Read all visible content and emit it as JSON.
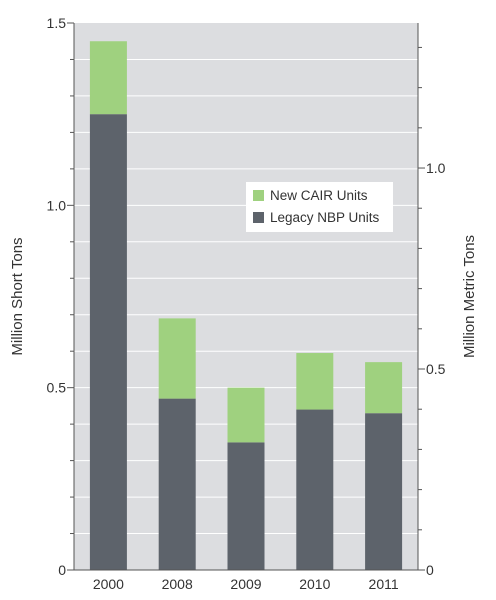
{
  "chart_data": {
    "type": "bar",
    "stacked": true,
    "categories": [
      "2000",
      "2008",
      "2009",
      "2010",
      "2011"
    ],
    "series": [
      {
        "name": "Legacy NBP Units",
        "values": [
          1.25,
          0.47,
          0.35,
          0.44,
          0.43
        ],
        "color": "#5d636b"
      },
      {
        "name": "New CAIR Units",
        "values": [
          0.2,
          0.22,
          0.15,
          0.155,
          0.14
        ],
        "color": "#9fd17f"
      }
    ],
    "ylabel": "Million Short Tons",
    "ylabel_right": "Million Metric Tons",
    "ylim": [
      0,
      1.5
    ],
    "y_ticks": [
      "0",
      "0.5",
      "1.0",
      "1.5"
    ],
    "y_right_ticks": [
      "0",
      "0.5",
      "1.0"
    ],
    "short_to_metric": 0.907185,
    "grid": true,
    "legend": {
      "placement": "center-right",
      "order": [
        "New CAIR Units",
        "Legacy NBP Units"
      ]
    },
    "colors": {
      "plot_background": "#dcdde0",
      "gridline": "#ffffff",
      "axis": "#555555"
    }
  }
}
